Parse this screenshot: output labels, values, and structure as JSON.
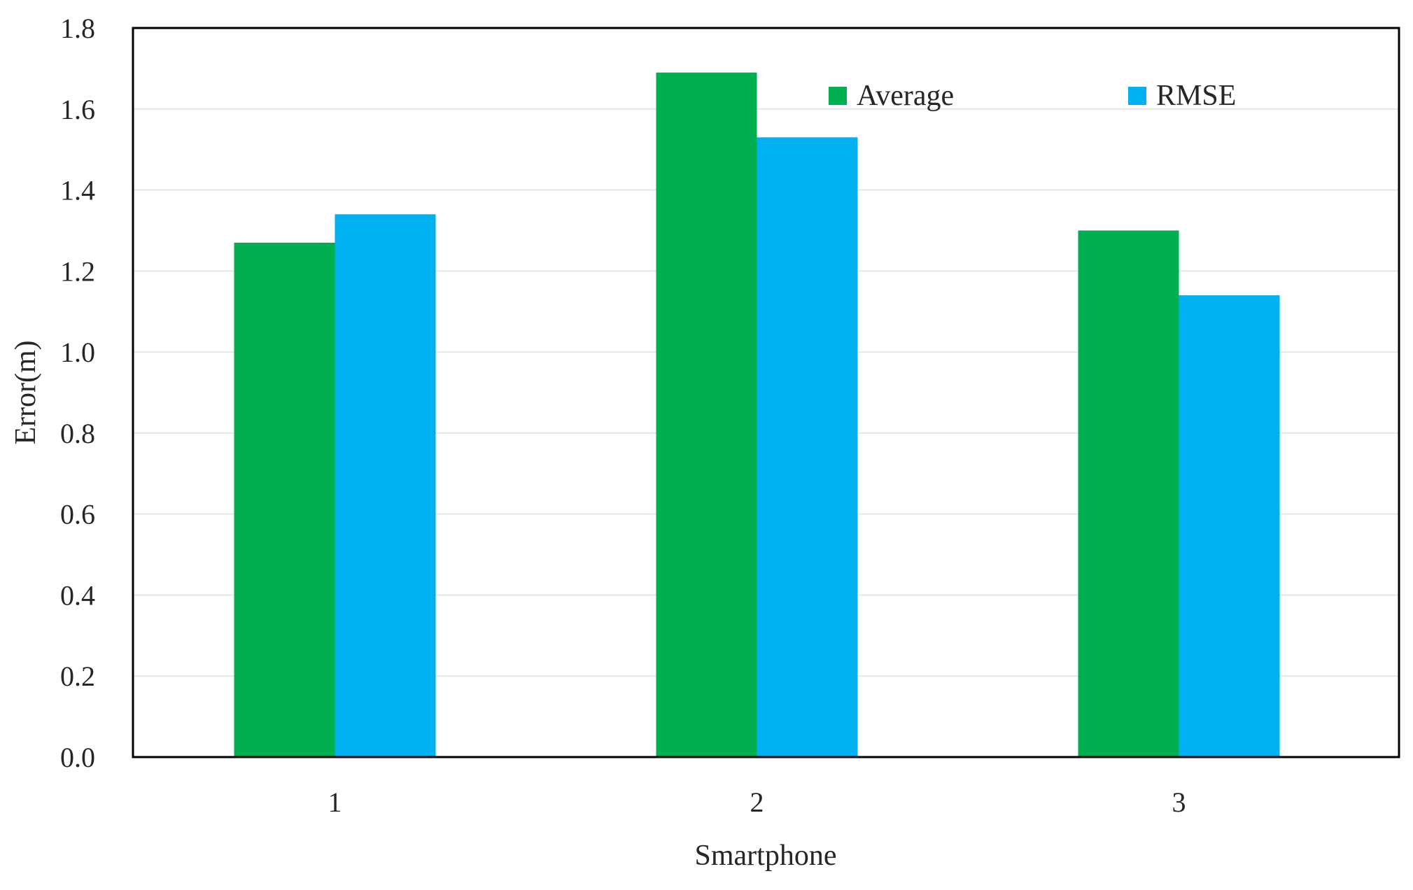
{
  "chart_data": {
    "type": "bar",
    "title": "",
    "xlabel": "Smartphone",
    "ylabel": "Error(m)",
    "categories": [
      "1",
      "2",
      "3"
    ],
    "series": [
      {
        "name": "Average",
        "values": [
          1.27,
          1.69,
          1.3
        ],
        "color": "#00b050"
      },
      {
        "name": "RMSE",
        "values": [
          1.34,
          1.53,
          1.14
        ],
        "color": "#00b0f0"
      }
    ],
    "ylim": [
      0,
      1.8
    ],
    "yticks": [
      "0.0",
      "0.2",
      "0.4",
      "0.6",
      "0.8",
      "1.0",
      "1.2",
      "1.4",
      "1.6",
      "1.8"
    ],
    "grid": true,
    "legend_position": "top-right"
  }
}
